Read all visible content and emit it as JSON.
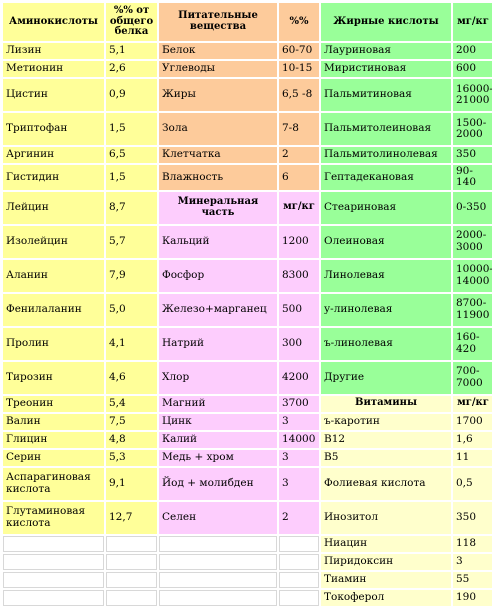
{
  "headers": {
    "amino": "Аминокислоты",
    "amino_pct": "%% от общего белка",
    "nutrients": "Питательные вещества",
    "nutrients_pct": "%%",
    "fatty": "Жирные кислоты",
    "fatty_unit": "мг/кг",
    "minerals": "Минеральная часть",
    "minerals_unit": "мг/кг",
    "vitamins": "Витамины",
    "vitamins_unit": "мг/кг"
  },
  "amino_acids": [
    {
      "name": "Лизин",
      "value": "5,1"
    },
    {
      "name": "Метионин",
      "value": "2,6"
    },
    {
      "name": "Цистин",
      "value": "0,9"
    },
    {
      "name": "Триптофан",
      "value": "1,5"
    },
    {
      "name": "Аргинин",
      "value": "6,5"
    },
    {
      "name": "Гистидин",
      "value": "1,5"
    },
    {
      "name": "Лейцин",
      "value": "8,7"
    },
    {
      "name": "Изолейцин",
      "value": "5,7"
    },
    {
      "name": "Аланин",
      "value": "7,9"
    },
    {
      "name": "Фенилаланин",
      "value": "5,0"
    },
    {
      "name": "Пролин",
      "value": "4,1"
    },
    {
      "name": "Тирозин",
      "value": "4,6"
    },
    {
      "name": "Треонин",
      "value": "5,4"
    },
    {
      "name": "Валин",
      "value": "7,5"
    },
    {
      "name": "Глицин",
      "value": "4,8"
    },
    {
      "name": "Серин",
      "value": "5,3"
    },
    {
      "name": "Аспарагиновая кислота",
      "value": "9,1"
    },
    {
      "name": "Глутаминовая кислота",
      "value": "12,7"
    }
  ],
  "nutrients": [
    {
      "name": "Белок",
      "value": "60-70"
    },
    {
      "name": "Углеводы",
      "value": "10-15"
    },
    {
      "name": "Жиры",
      "value": "6,5 -8"
    },
    {
      "name": "Зола",
      "value": "7-8"
    },
    {
      "name": "Клетчатка",
      "value": "2"
    },
    {
      "name": "Влажность",
      "value": "6"
    }
  ],
  "minerals": [
    {
      "name": "Кальций",
      "value": "1200"
    },
    {
      "name": "Фосфор",
      "value": "8300"
    },
    {
      "name": "Железо+марганец",
      "value": "500"
    },
    {
      "name": "Натрий",
      "value": "300"
    },
    {
      "name": "Хлор",
      "value": "4200"
    },
    {
      "name": "Магний",
      "value": "3700"
    },
    {
      "name": "Цинк",
      "value": "3"
    },
    {
      "name": "Калий",
      "value": "14000"
    },
    {
      "name": "Медь + хром",
      "value": "3"
    },
    {
      "name": "Йод + молибден",
      "value": "3"
    },
    {
      "name": "Селен",
      "value": "2"
    }
  ],
  "fatty_acids": [
    {
      "name": "Лауриновая",
      "value": "200"
    },
    {
      "name": "Миристиновая",
      "value": "600"
    },
    {
      "name": "Пальмитиновая",
      "value": "16000-21000"
    },
    {
      "name": "Пальмитолеиновая",
      "value": "1500-2000"
    },
    {
      "name": "Пальмитолинолевая",
      "value": "350"
    },
    {
      "name": "Гептадекановая",
      "value": "90-140"
    },
    {
      "name": "Стеариновая",
      "value": "0-350"
    },
    {
      "name": "Олеиновая",
      "value": "2000-3000"
    },
    {
      "name": "Линолевая",
      "value": "10000-14000"
    },
    {
      "name": "у-линолевая",
      "value": "8700-11900"
    },
    {
      "name": "ъ-линолевая",
      "value": "160-420"
    },
    {
      "name": "Другие",
      "value": "700-7000"
    }
  ],
  "vitamins": [
    {
      "name": "ъ-каротин",
      "value": "1700"
    },
    {
      "name": "В12",
      "value": "1,6"
    },
    {
      "name": "В5",
      "value": "11"
    },
    {
      "name": "Фолиевая кислота",
      "value": "0,5"
    },
    {
      "name": "Инозитол",
      "value": "350"
    },
    {
      "name": "Ниацин",
      "value": "118"
    },
    {
      "name": "Пиридоксин",
      "value": "3"
    },
    {
      "name": "Тиамин",
      "value": "55"
    },
    {
      "name": "Токоферол",
      "value": "190"
    }
  ]
}
